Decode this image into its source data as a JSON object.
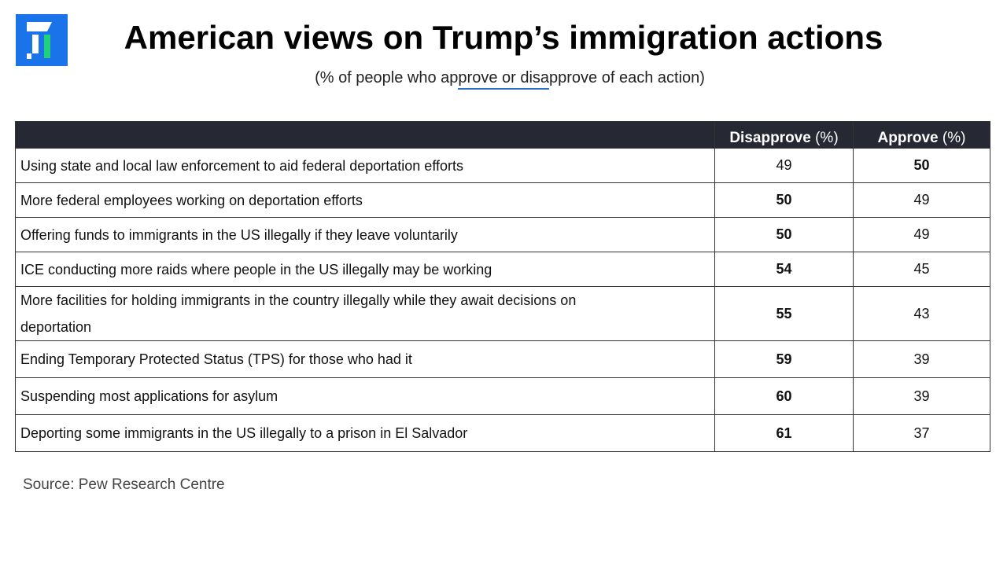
{
  "header": {
    "title": "American views on Trump’s immigration actions",
    "subtitle": "(% of people who approve or disapprove of each action)"
  },
  "table": {
    "columns": [
      {
        "name": "Disapprove",
        "unit": "(%)"
      },
      {
        "name": "Approve",
        "unit": "(%)"
      }
    ],
    "rows": [
      [
        "Using state and local law enforcement to aid federal deportation efforts",
        49,
        50
      ],
      [
        "More federal employees working on deportation efforts",
        50,
        49
      ],
      [
        "Offering funds to immigrants in the US illegally if they leave voluntarily",
        50,
        49
      ],
      [
        "ICE conducting more raids where people in the US illegally may be working",
        54,
        45
      ],
      [
        "More facilities for holding immigrants in the country illegally while they await decisions on deportation",
        55,
        43
      ],
      [
        "Ending Temporary Protected Status (TPS) for those who had it",
        59,
        39
      ],
      [
        "Suspending most applications for asylum",
        60,
        39
      ],
      [
        "Deporting some immigrants in the US illegally to a prison in El Salvador",
        61,
        37
      ]
    ]
  },
  "footer": {
    "source": "Source: Pew Research Centre"
  }
}
